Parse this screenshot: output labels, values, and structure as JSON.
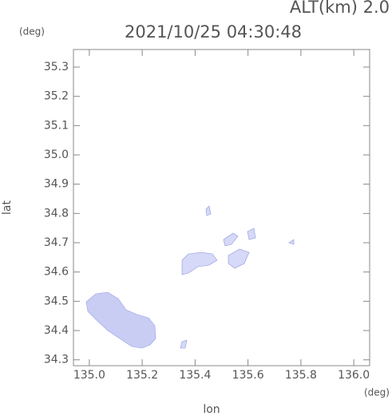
{
  "chart_data": {
    "type": "map",
    "title": "2021/10/25 04:30:48",
    "annotation": "ALT(km) 2.0",
    "ylabel": "lat",
    "yunit": "(deg)",
    "xlabel": "lon",
    "xunit": "(deg)",
    "xlim": [
      134.94,
      136.06
    ],
    "ylim": [
      34.28,
      35.36
    ],
    "xticks": [
      {
        "value": 135,
        "label": "135.0"
      },
      135.2,
      135.4,
      135.6,
      135.8,
      {
        "value": 136,
        "label": "136.0"
      }
    ],
    "yticks": [
      35.3,
      35.2,
      35.1,
      {
        "value": 35,
        "label": "35.0"
      },
      34.9,
      34.8,
      34.7,
      34.6,
      34.5,
      34.4,
      34.3
    ]
  }
}
